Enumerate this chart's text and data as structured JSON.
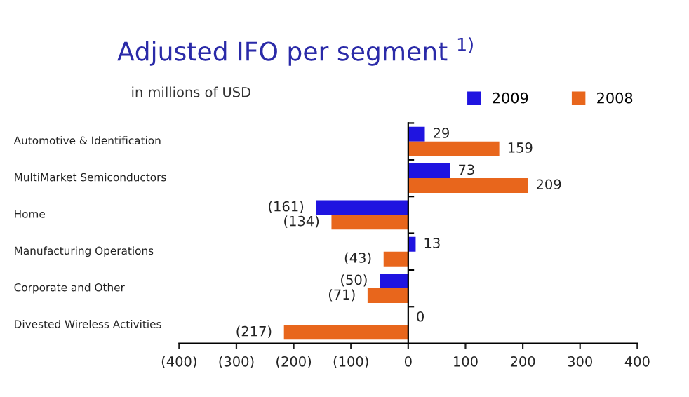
{
  "chart_data": {
    "type": "bar",
    "orientation": "horizontal",
    "title": "Adjusted IFO per segment $^{1)}$",
    "subtitle": "in millions of USD",
    "categories": [
      "Automotive & Identification",
      "MultiMarket Semiconductors",
      "Home",
      "Manufacturing Operations",
      "Corporate and Other",
      "Divested Wireless Activities"
    ],
    "series": [
      {
        "name": "2009",
        "color": "#1f14e0",
        "values": [
          29,
          73,
          -161,
          13,
          -50,
          0
        ],
        "value_labels": [
          "29",
          "73",
          "(161)",
          "13",
          "(50)",
          "0"
        ]
      },
      {
        "name": "2008",
        "color": "#e8661c",
        "values": [
          159,
          209,
          -134,
          -43,
          -71,
          -217
        ],
        "value_labels": [
          "159",
          "209",
          "(134)",
          "(43)",
          "(71)",
          "(217)"
        ]
      }
    ],
    "xlim": [
      -400,
      400
    ],
    "xticks": [
      {
        "value": -400,
        "label": "(400)"
      },
      {
        "value": -300,
        "label": "(300)"
      },
      {
        "value": -200,
        "label": "(200)"
      },
      {
        "value": -100,
        "label": "(100)"
      },
      0,
      100,
      200,
      300,
      400
    ],
    "legend": "top right"
  }
}
